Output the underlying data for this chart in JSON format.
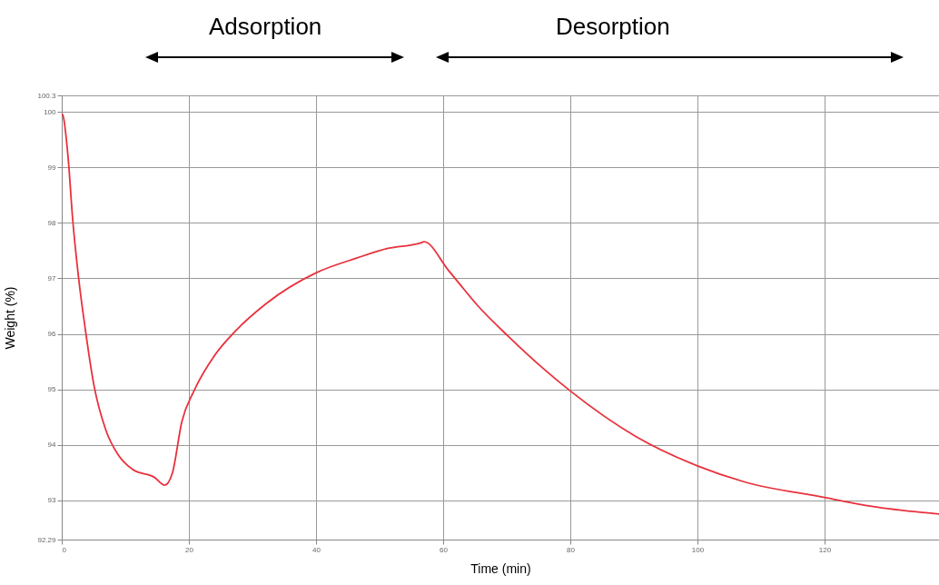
{
  "chart_data": {
    "type": "line",
    "xlabel": "Time (min)",
    "ylabel": "Weight (%)",
    "annotations": [
      "Adsorption",
      "Desorption"
    ],
    "x": [
      0,
      0.19,
      1.0,
      1.71,
      2.67,
      3.6,
      5.05,
      6.95,
      8.86,
      11.2,
      14.6,
      16.2,
      17.4,
      18.9,
      20.8,
      24.1,
      27.4,
      32.2,
      40.0,
      46.5,
      51.3,
      56.5,
      57.0,
      60.8,
      65.5,
      70.3,
      75.7,
      80,
      90.3,
      100,
      107.4,
      120,
      127.4,
      138
    ],
    "series": [
      {
        "color": "#e8313c",
        "values": [
          99.97,
          99.94,
          99.18,
          98.08,
          96.99,
          96.17,
          95.08,
          94.26,
          93.82,
          93.55,
          93.41,
          93.27,
          93.49,
          94.42,
          94.97,
          95.62,
          96.06,
          96.55,
          97.1,
          97.37,
          97.54,
          97.64,
          97.66,
          97.15,
          96.5,
          95.95,
          95.38,
          94.97,
          94.15,
          93.62,
          93.33,
          93.05,
          92.89,
          92.75
        ]
      }
    ],
    "xlim": [
      0,
      138
    ],
    "xticks": [
      0,
      20,
      40,
      60,
      80,
      100,
      120
    ],
    "ylim": [
      92.29,
      100.3
    ],
    "yticks": [
      92.29,
      93,
      94,
      95,
      96,
      97,
      98,
      99,
      100,
      100.3
    ],
    "grid": true,
    "legend": false
  }
}
